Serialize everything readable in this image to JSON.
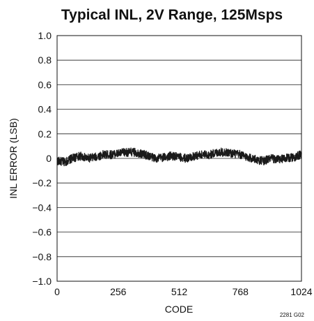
{
  "chart_data": {
    "type": "line",
    "title": "Typical INL, 2V Range, 125Msps",
    "xlabel": "CODE",
    "ylabel": "INL ERROR (LSB)",
    "xlim": [
      0,
      1024
    ],
    "ylim": [
      -1.0,
      1.0
    ],
    "x_ticks": [
      0,
      256,
      512,
      768,
      1024
    ],
    "x_tick_labels": [
      "0",
      "256",
      "512",
      "768",
      "1024"
    ],
    "y_ticks": [
      1.0,
      0.8,
      0.6,
      0.4,
      0.2,
      0,
      -0.2,
      -0.4,
      -0.6,
      -0.8,
      -1.0
    ],
    "y_tick_labels": [
      "1.0",
      "0.8",
      "0.6",
      "0.4",
      "0.2",
      "0",
      "−0.2",
      "−0.4",
      "−0.6",
      "−0.8",
      "−1.0"
    ],
    "grid": "horizontal",
    "series": [
      {
        "color": "#1a1a1a",
        "x": [
          0,
          32,
          64,
          96,
          128,
          160,
          192,
          224,
          256,
          288,
          320,
          352,
          384,
          416,
          448,
          480,
          512,
          544,
          576,
          608,
          640,
          672,
          704,
          736,
          768,
          800,
          832,
          864,
          896,
          928,
          960,
          992,
          1024
        ],
        "y": [
          -0.02,
          -0.03,
          0.0,
          0.02,
          0.0,
          0.01,
          0.03,
          0.03,
          0.04,
          0.05,
          0.05,
          0.04,
          0.02,
          0.0,
          0.01,
          0.02,
          0.01,
          0.0,
          0.02,
          0.03,
          0.03,
          0.05,
          0.05,
          0.04,
          0.03,
          0.01,
          -0.01,
          -0.02,
          0.0,
          -0.01,
          0.0,
          0.01,
          0.03
        ],
        "noise_amplitude": 0.035
      }
    ],
    "figure_id": "2281 G02"
  }
}
